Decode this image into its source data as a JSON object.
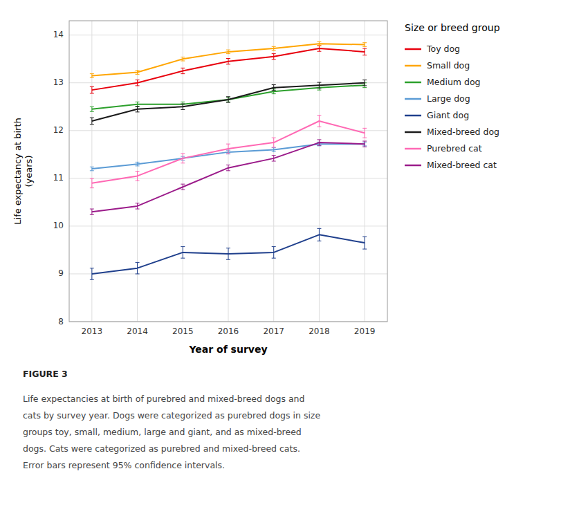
{
  "chart_data": {
    "type": "line",
    "x_label": "Year of survey",
    "y_label": "Life expectancy at birth\n(years)",
    "legend_title": "Size or breed group",
    "x": [
      2013,
      2014,
      2015,
      2016,
      2017,
      2018,
      2019
    ],
    "xlim": [
      2012.5,
      2019.5
    ],
    "xticks": [
      2013,
      2014,
      2015,
      2016,
      2017,
      2018,
      2019
    ],
    "ylim": [
      8,
      14.3
    ],
    "yticks": [
      8,
      9,
      10,
      11,
      12,
      13,
      14
    ],
    "grid": true,
    "legend": "right",
    "series": [
      {
        "name": "Toy dog",
        "color": "#e8000d",
        "values": [
          12.85,
          13.0,
          13.25,
          13.45,
          13.55,
          13.72,
          13.65
        ],
        "errors": [
          0.07,
          0.06,
          0.06,
          0.06,
          0.06,
          0.06,
          0.07
        ]
      },
      {
        "name": "Small dog",
        "color": "#ffa500",
        "values": [
          13.15,
          13.22,
          13.5,
          13.65,
          13.72,
          13.82,
          13.8
        ],
        "errors": [
          0.04,
          0.04,
          0.04,
          0.04,
          0.04,
          0.04,
          0.04
        ]
      },
      {
        "name": "Medium dog",
        "color": "#2ca02c",
        "values": [
          12.45,
          12.55,
          12.55,
          12.65,
          12.82,
          12.9,
          12.95
        ],
        "errors": [
          0.05,
          0.05,
          0.05,
          0.05,
          0.05,
          0.05,
          0.05
        ]
      },
      {
        "name": "Large dog",
        "color": "#5b9bd5",
        "values": [
          11.2,
          11.3,
          11.42,
          11.55,
          11.6,
          11.72,
          11.72
        ],
        "errors": [
          0.04,
          0.04,
          0.04,
          0.04,
          0.04,
          0.04,
          0.04
        ]
      },
      {
        "name": "Giant dog",
        "color": "#1f3f8c",
        "values": [
          9.0,
          9.12,
          9.45,
          9.42,
          9.45,
          9.82,
          9.65
        ],
        "errors": [
          0.12,
          0.12,
          0.12,
          0.12,
          0.12,
          0.13,
          0.13
        ]
      },
      {
        "name": "Mixed-breed dog",
        "color": "#1a1a1a",
        "values": [
          12.2,
          12.45,
          12.5,
          12.65,
          12.9,
          12.95,
          13.0
        ],
        "errors": [
          0.07,
          0.06,
          0.06,
          0.06,
          0.06,
          0.06,
          0.06
        ]
      },
      {
        "name": "Purebred cat",
        "color": "#ff69b4",
        "values": [
          10.9,
          11.05,
          11.42,
          11.62,
          11.75,
          12.2,
          11.95
        ],
        "errors": [
          0.1,
          0.1,
          0.1,
          0.1,
          0.1,
          0.12,
          0.1
        ]
      },
      {
        "name": "Mixed-breed cat",
        "color": "#9b1b8a",
        "values": [
          10.3,
          10.42,
          10.82,
          11.22,
          11.42,
          11.75,
          11.72
        ],
        "errors": [
          0.06,
          0.06,
          0.06,
          0.06,
          0.06,
          0.06,
          0.06
        ]
      }
    ],
    "annotations": [
      "FIGURE 3",
      "Life expectancies at birth of purebred and mixed-breed dogs and",
      "cats by survey year. Dogs were categorized as purebred dogs in size",
      "groups toy, small, medium, large and giant, and as mixed-breed",
      "dogs. Cats were categorized as purebred and mixed-breed cats.",
      "Error bars represent 95% confidence intervals."
    ]
  }
}
